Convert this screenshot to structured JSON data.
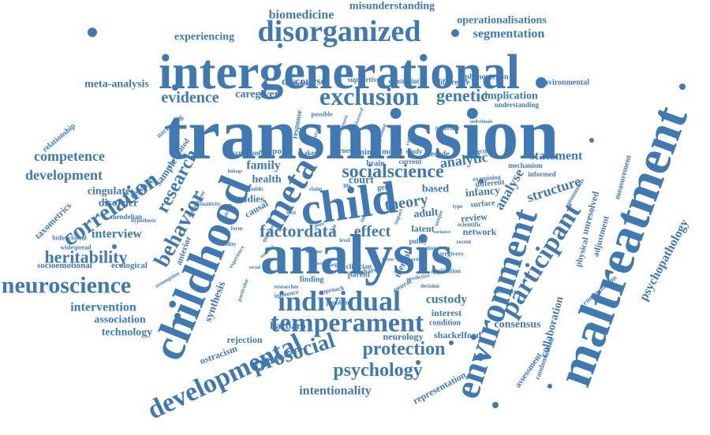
{
  "cloud": {
    "color": "#3f79b4",
    "words": [
      {
        "text": "transmission"
      },
      {
        "text": "intergenerational"
      },
      {
        "text": "analysis"
      },
      {
        "text": "maltreatment"
      },
      {
        "text": "childhood"
      },
      {
        "text": "child"
      },
      {
        "text": "environment"
      },
      {
        "text": "disorganized"
      },
      {
        "text": "meta"
      },
      {
        "text": "exclusion"
      },
      {
        "text": "individual"
      },
      {
        "text": "temperament"
      },
      {
        "text": "developmental"
      },
      {
        "text": "participant"
      },
      {
        "text": "neuroscience"
      },
      {
        "text": "correlation"
      },
      {
        "text": "behavior"
      },
      {
        "text": "research"
      },
      {
        "text": "prosocial"
      },
      {
        "text": "psychology"
      },
      {
        "text": "socialscience"
      },
      {
        "text": "factordata"
      },
      {
        "text": "heritability"
      },
      {
        "text": "protection"
      },
      {
        "text": "genetic"
      },
      {
        "text": "competence"
      },
      {
        "text": "development"
      },
      {
        "text": "evidence"
      },
      {
        "text": "theory"
      },
      {
        "text": "effect"
      },
      {
        "text": "structure"
      },
      {
        "text": "analyse"
      },
      {
        "text": "psychopathology"
      },
      {
        "text": "collaboration"
      },
      {
        "text": "segmentation"
      },
      {
        "text": "operationalisations"
      },
      {
        "text": "biomedicine"
      },
      {
        "text": "misunderstanding"
      },
      {
        "text": "experiencing"
      },
      {
        "text": "meta-analysis"
      },
      {
        "text": "caregiver"
      },
      {
        "text": "discourse"
      },
      {
        "text": "implication"
      },
      {
        "text": "statement"
      },
      {
        "text": "analytic"
      },
      {
        "text": "interview"
      },
      {
        "text": "intervention"
      },
      {
        "text": "association"
      },
      {
        "text": "technology"
      },
      {
        "text": "synthesis"
      },
      {
        "text": "custody"
      },
      {
        "text": "consensus"
      },
      {
        "text": "intentionality"
      },
      {
        "text": "representation"
      },
      {
        "text": "neurology"
      },
      {
        "text": "shackelford"
      },
      {
        "text": "rejection"
      },
      {
        "text": "ostracism"
      },
      {
        "text": "family"
      },
      {
        "text": "health"
      },
      {
        "text": "court"
      },
      {
        "text": "based"
      },
      {
        "text": "infancy"
      },
      {
        "text": "adult"
      },
      {
        "text": "review"
      },
      {
        "text": "latent"
      },
      {
        "text": "network"
      },
      {
        "text": "interest"
      },
      {
        "text": "condition"
      },
      {
        "text": "cingulate"
      },
      {
        "text": "disorder"
      },
      {
        "text": "sample"
      },
      {
        "text": "reward"
      },
      {
        "text": "taxometrics"
      },
      {
        "text": "socioemotional"
      },
      {
        "text": "ecological"
      },
      {
        "text": "studies"
      },
      {
        "text": "barbaro"
      },
      {
        "text": "causal"
      },
      {
        "text": "anterior"
      },
      {
        "text": "unresolved"
      },
      {
        "text": "physical"
      },
      {
        "text": "adjustment"
      },
      {
        "text": "assessment"
      },
      {
        "text": "mental"
      },
      {
        "text": "support"
      },
      {
        "text": "mind"
      },
      {
        "text": "brain"
      },
      {
        "text": "gene"
      },
      {
        "text": "model"
      },
      {
        "text": "decade"
      },
      {
        "text": "surface"
      },
      {
        "text": "different"
      },
      {
        "text": "phenomenon"
      },
      {
        "text": "environmental"
      },
      {
        "text": "understanding"
      },
      {
        "text": "difference"
      },
      {
        "text": "constraint"
      },
      {
        "text": "supportive"
      },
      {
        "text": "relationship"
      },
      {
        "text": "narrowing"
      },
      {
        "text": "correlated"
      },
      {
        "text": "response"
      },
      {
        "text": "symptom"
      },
      {
        "text": "maker"
      },
      {
        "text": "barnes"
      },
      {
        "text": "study"
      },
      {
        "text": "current"
      },
      {
        "text": "finding"
      },
      {
        "text": "parent"
      },
      {
        "text": "shared"
      },
      {
        "text": "clinician"
      },
      {
        "text": "policy"
      },
      {
        "text": "neural"
      },
      {
        "text": "compensation"
      },
      {
        "text": "randomisation"
      },
      {
        "text": "measurement"
      },
      {
        "text": "mechanism"
      },
      {
        "text": "informed"
      },
      {
        "text": "autonomous"
      },
      {
        "text": "mendelian"
      },
      {
        "text": "bidirectional"
      },
      {
        "text": "widespread"
      },
      {
        "text": "inclusion"
      },
      {
        "text": "possible"
      },
      {
        "text": "direction"
      },
      {
        "text": "scientific"
      },
      {
        "text": "application"
      },
      {
        "text": "caregivers"
      },
      {
        "text": "examining"
      },
      {
        "text": "problem"
      },
      {
        "text": "approach"
      },
      {
        "text": "influence"
      },
      {
        "text": "researcher"
      },
      {
        "text": "assumption"
      },
      {
        "text": "hypothesis"
      },
      {
        "text": "sensitivity"
      },
      {
        "text": "memorize"
      },
      {
        "text": "aspect"
      },
      {
        "text": "predictive"
      },
      {
        "text": "decision"
      },
      {
        "text": "important"
      },
      {
        "text": "pooling"
      },
      {
        "text": "cultural"
      },
      {
        "text": "reaction"
      },
      {
        "text": "best"
      },
      {
        "text": "public"
      },
      {
        "text": "claim"
      },
      {
        "text": "role"
      },
      {
        "text": "inform"
      },
      {
        "text": "life"
      },
      {
        "text": "peer"
      },
      {
        "text": "level"
      },
      {
        "text": "type"
      },
      {
        "text": "form"
      },
      {
        "text": "unique"
      },
      {
        "text": "recent"
      },
      {
        "text": "question"
      },
      {
        "text": "ability"
      },
      {
        "text": "impact"
      },
      {
        "text": "lead"
      },
      {
        "text": "independent"
      },
      {
        "text": "experience"
      },
      {
        "text": "particular"
      },
      {
        "text": "behavioral"
      },
      {
        "text": "attachment"
      },
      {
        "text": "cognitive"
      },
      {
        "text": "linkage"
      },
      {
        "text": "prediction"
      },
      {
        "text": "social"
      },
      {
        "text": "national"
      },
      {
        "text": "individuals"
      },
      {
        "text": "variance"
      },
      {
        "text": "outcome"
      },
      {
        "text": "severity"
      },
      {
        "text": "process"
      },
      {
        "text": "factor"
      }
    ]
  }
}
